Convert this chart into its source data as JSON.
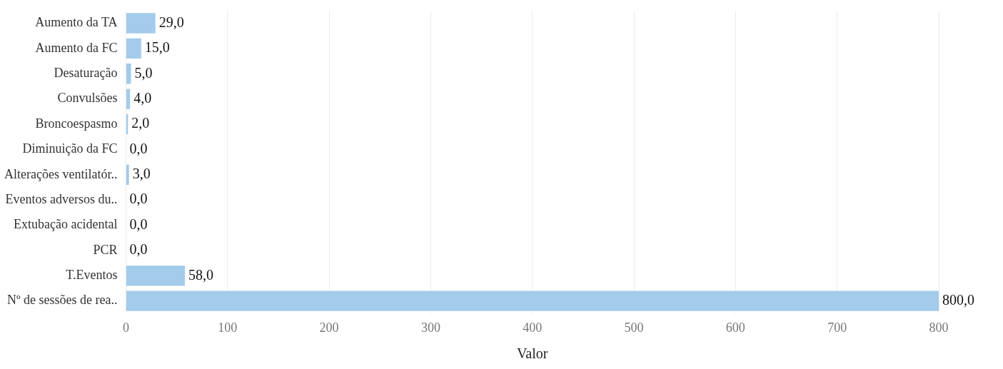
{
  "chart_data": {
    "type": "bar",
    "orientation": "horizontal",
    "xlabel": "Valor",
    "categories": [
      "Aumento da TA",
      "Aumento da FC",
      "Desaturação",
      "Convulsões",
      "Broncoespasmo",
      "Diminuição da FC",
      "Alterações ventilatór..",
      "Eventos adversos du..",
      "Extubação acidental",
      "PCR",
      "T.Eventos",
      "Nº de sessões de rea.."
    ],
    "values": [
      29,
      15,
      5,
      4,
      2,
      0,
      3,
      0,
      0,
      0,
      58,
      800
    ],
    "value_labels": [
      "29,0",
      "15,0",
      "5,0",
      "4,0",
      "2,0",
      "0,0",
      "3,0",
      "0,0",
      "0,0",
      "0,0",
      "58,0",
      "800,0"
    ],
    "color": "#a3cbea",
    "xlim": [
      0,
      800
    ],
    "xticks": [
      0,
      100,
      200,
      300,
      400,
      500,
      600,
      700,
      800
    ],
    "grid": "x",
    "legend": false
  }
}
